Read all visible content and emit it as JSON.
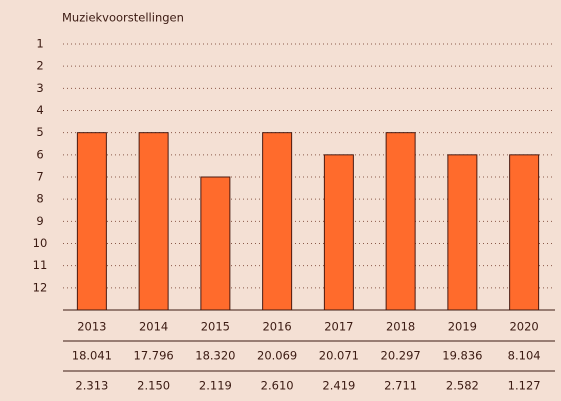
{
  "chart_data": {
    "type": "bar",
    "title": "Muziekvoorstellingen",
    "categories": [
      "2013",
      "2014",
      "2015",
      "2016",
      "2017",
      "2018",
      "2019",
      "2020"
    ],
    "values": [
      5,
      5,
      7,
      5,
      6,
      5,
      6,
      6
    ],
    "color": "#ff6b2c",
    "ylim": [
      13,
      1
    ],
    "yticks": [
      1,
      2,
      3,
      4,
      5,
      6,
      7,
      8,
      9,
      10,
      11,
      12
    ],
    "grid": true
  },
  "table": {
    "rows": [
      [
        "18.041",
        "17.796",
        "18.320",
        "20.069",
        "20.071",
        "20.297",
        "19.836",
        "8.104"
      ],
      [
        "2.313",
        "2.150",
        "2.119",
        "2.610",
        "2.419",
        "2.711",
        "2.582",
        "1.127"
      ]
    ]
  }
}
